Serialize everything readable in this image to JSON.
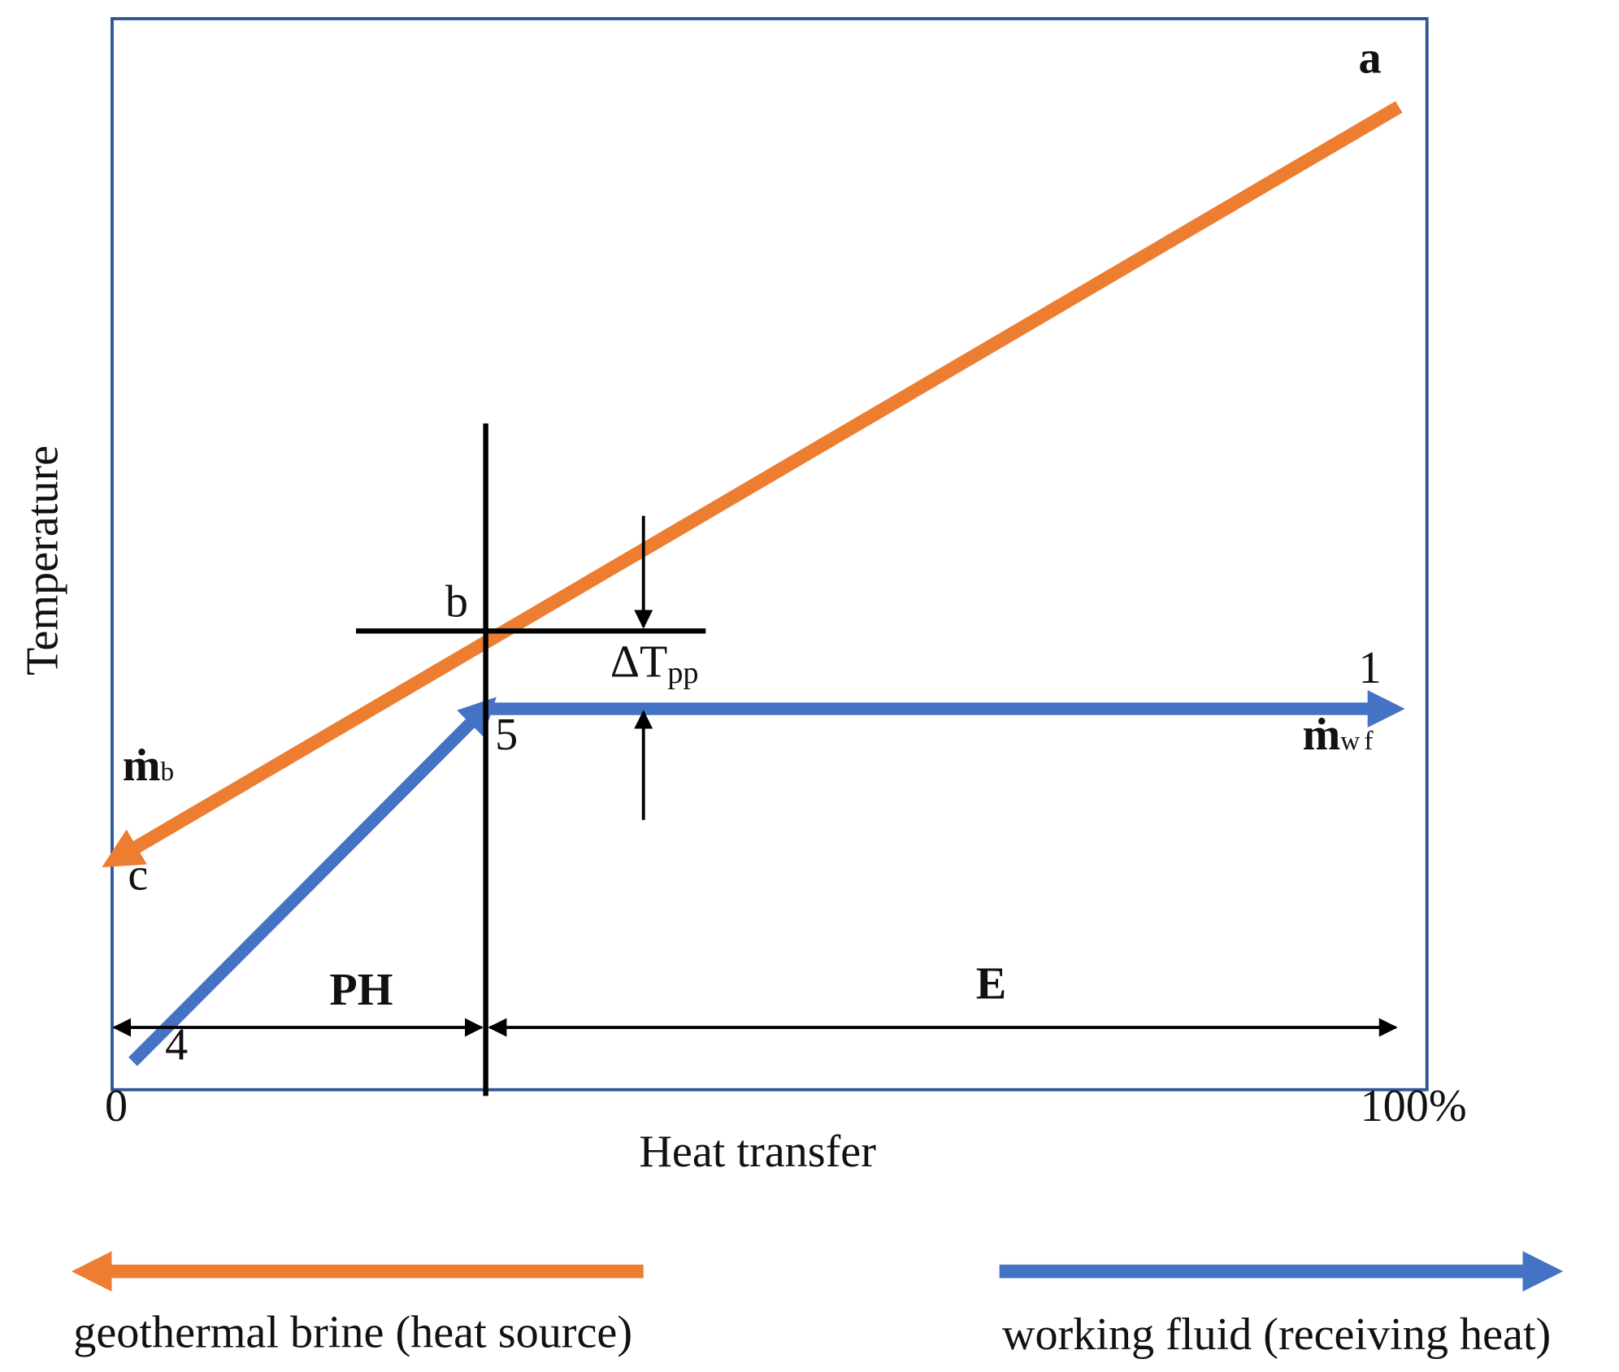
{
  "axes": {
    "x_label": "Heat transfer",
    "y_label": "Temperature",
    "x_start": "0",
    "x_end": "100%"
  },
  "points": [
    "a",
    "b",
    "c",
    "1",
    "4",
    "5"
  ],
  "flows": {
    "brine": {
      "symbol": "ṁ",
      "sub": "b"
    },
    "working_fluid": {
      "symbol": "ṁ",
      "sub": "wf"
    }
  },
  "pinch": {
    "symbol": "ΔT",
    "sub": "pp"
  },
  "regions": {
    "preheater": "PH",
    "evaporator": "E"
  },
  "legend": {
    "brine": "geothermal brine (heat source)",
    "working_fluid": "working fluid (receiving heat)"
  }
}
